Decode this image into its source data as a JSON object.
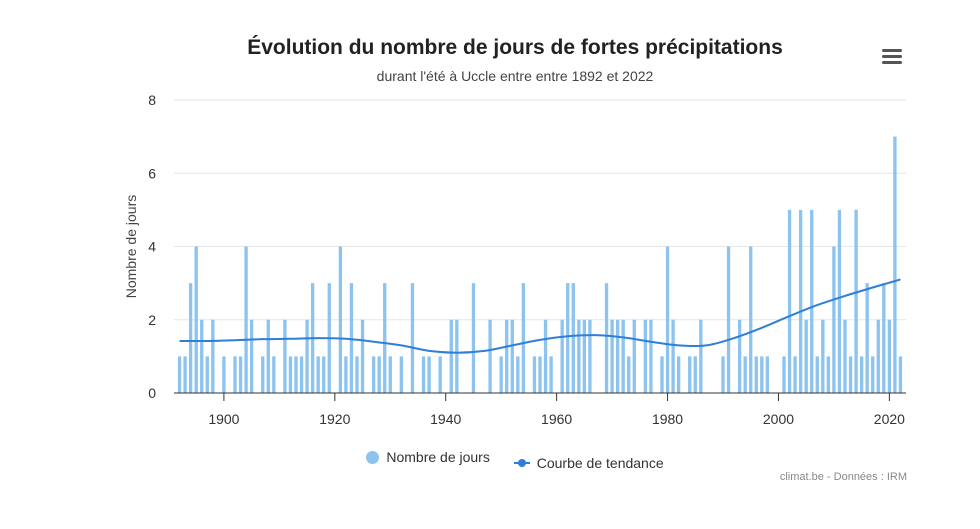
{
  "header": {
    "title": "Évolution du nombre de jours de fortes précipitations",
    "subtitle": "durant l'été à Uccle entre entre 1892 et 2022"
  },
  "menu": {
    "icon": "hamburger-menu-icon"
  },
  "legend": {
    "bars_label": "Nombre de jours",
    "line_label": "Courbe de tendance"
  },
  "credits": "climat.be - Données : IRM",
  "colors": {
    "bar": "#8cc3ef",
    "line": "#2f7ed8",
    "grid": "#e6e6e6",
    "axis": "#333333"
  },
  "chart_data": {
    "type": "bar",
    "ylabel": "Nombre de jours",
    "xlabel": "",
    "ylim": [
      0,
      8
    ],
    "yticks": [
      0,
      2,
      4,
      6,
      8
    ],
    "xlim": [
      1891,
      2023
    ],
    "xticks": [
      1900,
      1920,
      1940,
      1960,
      1980,
      2000,
      2020
    ],
    "series": [
      {
        "name": "Nombre de jours",
        "type": "bar",
        "x": [
          1892,
          1893,
          1894,
          1895,
          1896,
          1897,
          1898,
          1899,
          1900,
          1901,
          1902,
          1903,
          1904,
          1905,
          1906,
          1907,
          1908,
          1909,
          1910,
          1911,
          1912,
          1913,
          1914,
          1915,
          1916,
          1917,
          1918,
          1919,
          1920,
          1921,
          1922,
          1923,
          1924,
          1925,
          1926,
          1927,
          1928,
          1929,
          1930,
          1931,
          1932,
          1933,
          1934,
          1935,
          1936,
          1937,
          1938,
          1939,
          1940,
          1941,
          1942,
          1943,
          1944,
          1945,
          1946,
          1947,
          1948,
          1949,
          1950,
          1951,
          1952,
          1953,
          1954,
          1955,
          1956,
          1957,
          1958,
          1959,
          1960,
          1961,
          1962,
          1963,
          1964,
          1965,
          1966,
          1967,
          1968,
          1969,
          1970,
          1971,
          1972,
          1973,
          1974,
          1975,
          1976,
          1977,
          1978,
          1979,
          1980,
          1981,
          1982,
          1983,
          1984,
          1985,
          1986,
          1987,
          1988,
          1989,
          1990,
          1991,
          1992,
          1993,
          1994,
          1995,
          1996,
          1997,
          1998,
          1999,
          2000,
          2001,
          2002,
          2003,
          2004,
          2005,
          2006,
          2007,
          2008,
          2009,
          2010,
          2011,
          2012,
          2013,
          2014,
          2015,
          2016,
          2017,
          2018,
          2019,
          2020,
          2021,
          2022
        ],
        "values": [
          1,
          1,
          3,
          4,
          2,
          1,
          2,
          0,
          1,
          0,
          1,
          1,
          4,
          2,
          0,
          1,
          2,
          1,
          0,
          2,
          1,
          1,
          1,
          2,
          3,
          1,
          1,
          3,
          0,
          4,
          1,
          3,
          1,
          2,
          0,
          1,
          1,
          3,
          1,
          0,
          1,
          0,
          3,
          0,
          1,
          1,
          0,
          1,
          0,
          2,
          2,
          0,
          0,
          3,
          0,
          0,
          2,
          0,
          1,
          2,
          2,
          1,
          3,
          0,
          1,
          1,
          2,
          1,
          0,
          2,
          3,
          3,
          2,
          2,
          2,
          0,
          0,
          3,
          2,
          2,
          2,
          1,
          2,
          0,
          2,
          2,
          0,
          1,
          4,
          2,
          1,
          0,
          1,
          1,
          2,
          0,
          0,
          0,
          1,
          4,
          0,
          2,
          1,
          4,
          1,
          1,
          1,
          0,
          0,
          1,
          5,
          1,
          5,
          2,
          5,
          1,
          2,
          1,
          4,
          5,
          2,
          1,
          5,
          1,
          3,
          1,
          2,
          3,
          2,
          7,
          1
        ]
      },
      {
        "name": "Courbe de tendance",
        "type": "line",
        "x": [
          1892,
          1897,
          1902,
          1907,
          1912,
          1917,
          1922,
          1927,
          1932,
          1937,
          1942,
          1947,
          1952,
          1957,
          1962,
          1967,
          1972,
          1977,
          1982,
          1987,
          1992,
          1997,
          2002,
          2007,
          2012,
          2017,
          2022
        ],
        "values": [
          1.42,
          1.42,
          1.44,
          1.47,
          1.48,
          1.5,
          1.48,
          1.4,
          1.3,
          1.15,
          1.1,
          1.15,
          1.3,
          1.45,
          1.55,
          1.58,
          1.52,
          1.4,
          1.3,
          1.3,
          1.5,
          1.78,
          2.1,
          2.4,
          2.65,
          2.88,
          3.1
        ]
      }
    ]
  }
}
